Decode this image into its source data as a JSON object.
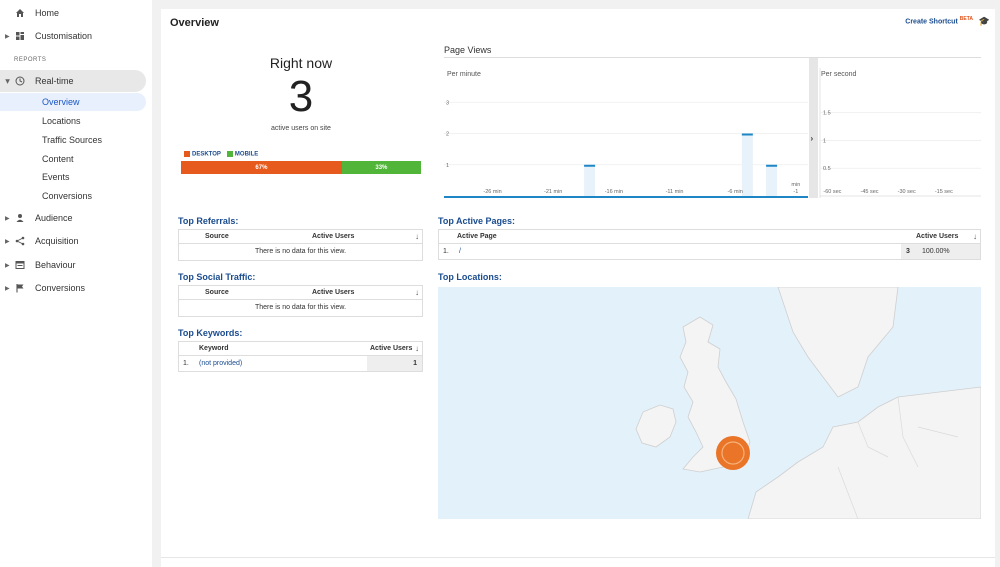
{
  "sidebar": {
    "home": "Home",
    "customisation": "Customisation",
    "reports_label": "REPORTS",
    "realtime": "Real-time",
    "realtime_items": [
      "Overview",
      "Locations",
      "Traffic Sources",
      "Content",
      "Events",
      "Conversions"
    ],
    "audience": "Audience",
    "acquisition": "Acquisition",
    "behaviour": "Behaviour",
    "conversions": "Conversions"
  },
  "header": {
    "title": "Overview",
    "create_shortcut": "Create Shortcut",
    "beta": "BETA"
  },
  "right_now": {
    "title": "Right now",
    "count": "3",
    "subtitle": "active users on site",
    "desktop_label": "DESKTOP",
    "mobile_label": "MOBILE",
    "desktop_pct": "67%",
    "mobile_pct": "33%",
    "desktop_fraction": 0.67,
    "mobile_fraction": 0.33
  },
  "page_views": {
    "title": "Page Views",
    "per_minute": "Per minute",
    "per_second": "Per second"
  },
  "chart_data": [
    {
      "type": "bar",
      "title": "Per minute",
      "x_tick_labels": [
        "-26 min",
        "-21 min",
        "-16 min",
        "-11 min",
        "-6 min",
        "-1"
      ],
      "x_tick_extra": "min",
      "y_ticks": [
        "1",
        "2",
        "3"
      ],
      "ylim": [
        0,
        3.2
      ],
      "bars": [
        {
          "x": -18,
          "value": 1
        },
        {
          "x": -5,
          "value": 2
        },
        {
          "x": -3,
          "value": 1
        }
      ]
    },
    {
      "type": "bar",
      "title": "Per second",
      "x_tick_labels": [
        "-60 sec",
        "-45 sec",
        "-30 sec",
        "-15 sec"
      ],
      "y_ticks": [
        "0.5",
        "1",
        "1.5"
      ],
      "ylim": [
        0,
        1.8
      ],
      "bars": []
    }
  ],
  "top_referrals": {
    "title": "Top Referrals:",
    "col_source": "Source",
    "col_users": "Active Users",
    "empty": "There is no data for this view."
  },
  "top_social": {
    "title": "Top Social Traffic:",
    "col_source": "Source",
    "col_users": "Active Users",
    "empty": "There is no data for this view."
  },
  "top_keywords": {
    "title": "Top Keywords:",
    "col_keyword": "Keyword",
    "col_users": "Active Users",
    "rows": [
      {
        "index": "1.",
        "keyword": "(not provided)",
        "users": "1"
      }
    ]
  },
  "top_pages": {
    "title": "Top Active Pages:",
    "col_page": "Active Page",
    "col_users": "Active Users",
    "rows": [
      {
        "index": "1.",
        "page": "/",
        "users": "3",
        "pct": "100.00%"
      }
    ]
  },
  "top_locations": {
    "title": "Top Locations:"
  },
  "colors": {
    "desktop": "#e65a1e",
    "mobile": "#51b53a",
    "chart_bar": "#1f86c6",
    "link": "#1a4c8f",
    "map_dot": "#ea7428"
  }
}
